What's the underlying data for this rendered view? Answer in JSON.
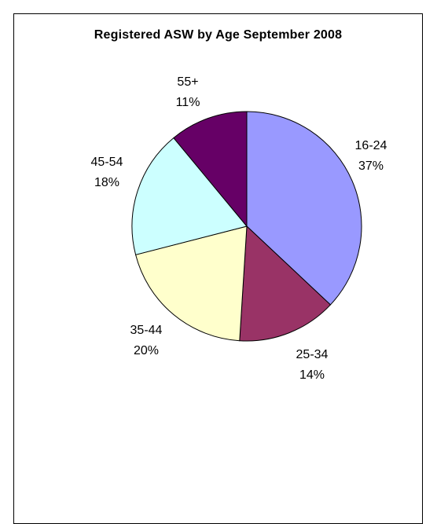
{
  "chart_data": {
    "type": "pie",
    "title": "Registered ASW by Age September 2008",
    "categories": [
      "16-24",
      "25-34",
      "35-44",
      "45-54",
      "55+"
    ],
    "values": [
      37,
      14,
      20,
      18,
      11
    ],
    "value_labels": [
      "37%",
      "14%",
      "20%",
      "18%",
      "11%"
    ],
    "colors": [
      "#9999ff",
      "#993366",
      "#ffffcc",
      "#ccffff",
      "#660066"
    ],
    "legend": "none",
    "start_angle_deg": 0,
    "direction": "clockwise"
  }
}
